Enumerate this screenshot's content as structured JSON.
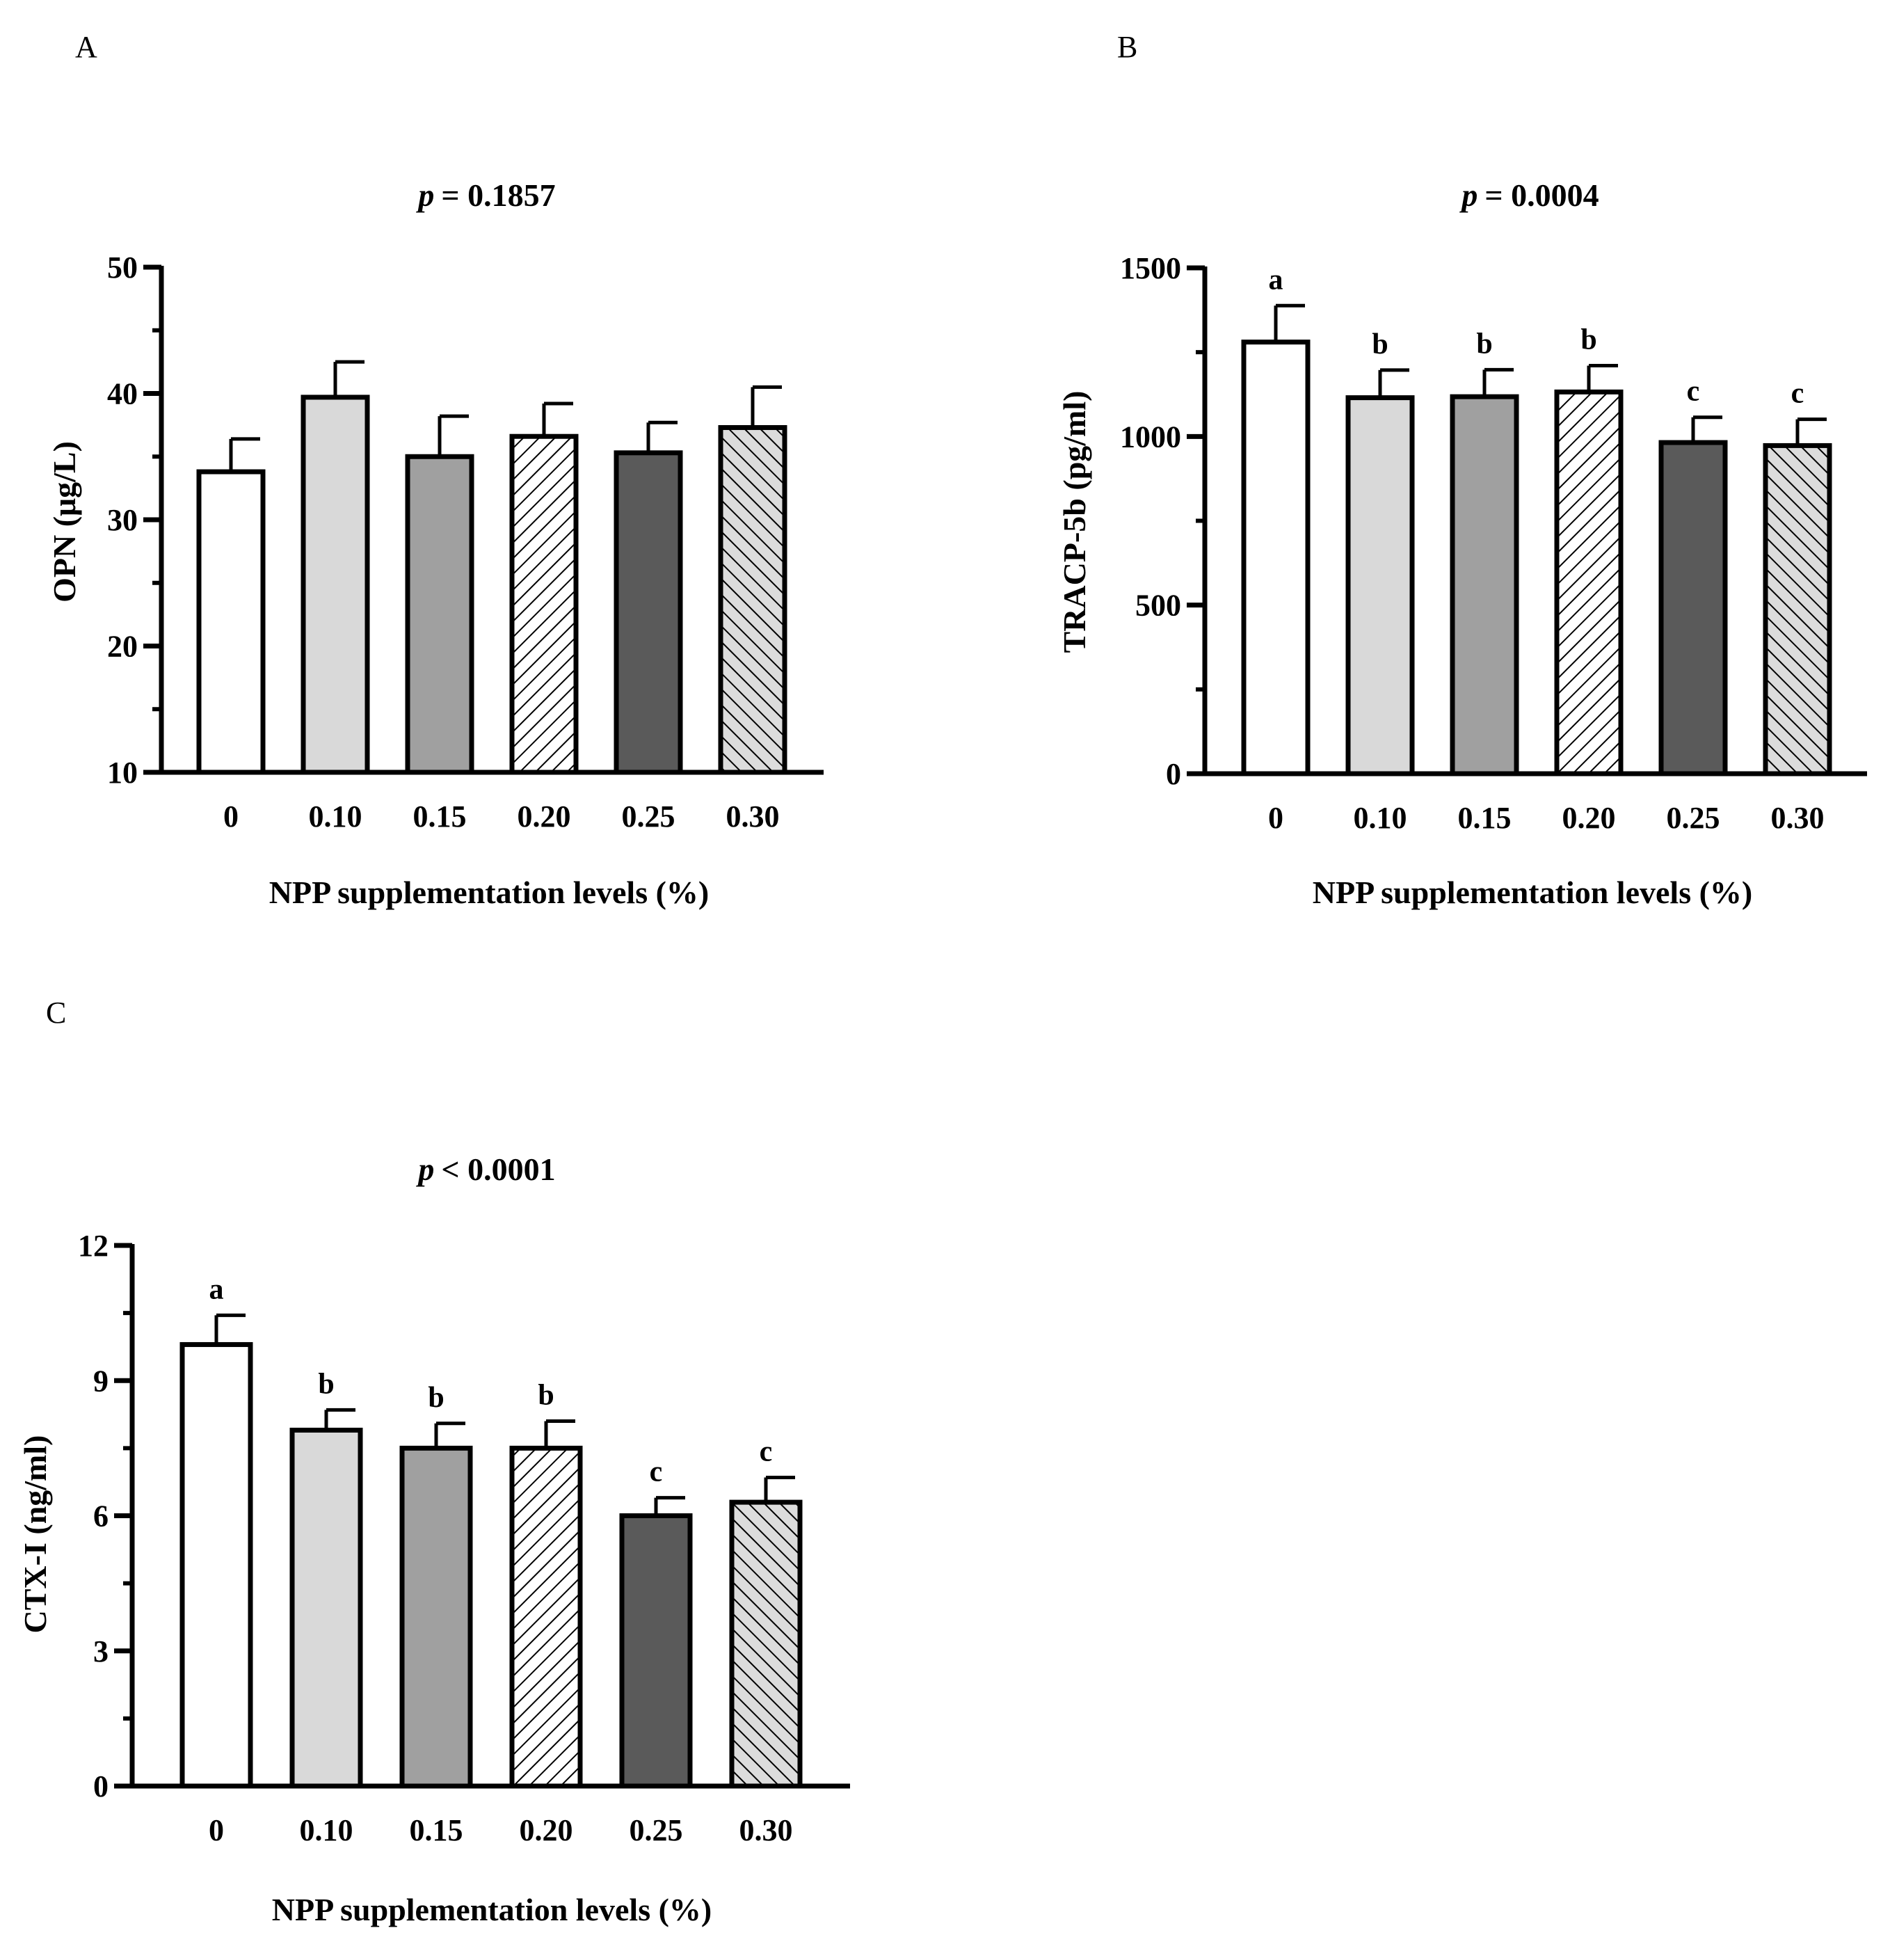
{
  "figure": {
    "colors": {
      "bar_white": "#ffffff",
      "bar_light": "#d9d9d9",
      "bar_mid": "#a0a0a0",
      "bar_dark": "#5a5a5a",
      "hatch_bg_a": "#ffffff",
      "hatch_bg_b": "#dcdcdc",
      "stroke": "#000000"
    }
  },
  "chart_data": [
    {
      "panel": "A",
      "type": "bar",
      "p_label": "p",
      "title": "= 0.1857",
      "ylabel": "OPN (μg/L)",
      "xlabel": "NPP supplementation levels (%)",
      "categories": [
        "0",
        "0.10",
        "0.15",
        "0.20",
        "0.25",
        "0.30"
      ],
      "values": [
        33.8,
        39.7,
        35.0,
        36.6,
        35.3,
        37.3
      ],
      "errors": [
        2.6,
        2.8,
        3.2,
        2.6,
        2.4,
        3.2
      ],
      "significance": [
        "",
        "",
        "",
        "",
        "",
        ""
      ],
      "fills": [
        "white",
        "light",
        "mid",
        "hatch_fwd",
        "dark",
        "hatch_back"
      ],
      "ylim": [
        10,
        50
      ],
      "yticks": [
        10,
        20,
        30,
        40,
        50
      ],
      "minor_step": 5
    },
    {
      "panel": "B",
      "type": "bar",
      "p_label": "p",
      "title": "= 0.0004",
      "ylabel": "TRACP-5b (pg/ml)",
      "xlabel": "NPP supplementation levels (%)",
      "categories": [
        "0",
        "0.10",
        "0.15",
        "0.20",
        "0.25",
        "0.30"
      ],
      "values": [
        1280,
        1115,
        1118,
        1132,
        982,
        973
      ],
      "errors": [
        108,
        82,
        80,
        78,
        75,
        78
      ],
      "significance": [
        "a",
        "b",
        "b",
        "b",
        "c",
        "c"
      ],
      "fills": [
        "white",
        "light",
        "mid",
        "hatch_fwd",
        "dark",
        "hatch_back"
      ],
      "ylim": [
        0,
        1500
      ],
      "yticks": [
        0,
        500,
        1000,
        1500
      ],
      "minor_step": 250
    },
    {
      "panel": "C",
      "type": "bar",
      "p_label": "p",
      "title": "< 0.0001",
      "ylabel": "CTX-I (ng/ml)",
      "xlabel": "NPP supplementation levels (%)",
      "categories": [
        "0",
        "0.10",
        "0.15",
        "0.20",
        "0.25",
        "0.30"
      ],
      "values": [
        9.8,
        7.9,
        7.5,
        7.5,
        6.0,
        6.3
      ],
      "errors": [
        0.65,
        0.45,
        0.55,
        0.6,
        0.4,
        0.55
      ],
      "significance": [
        "a",
        "b",
        "b",
        "b",
        "c",
        "c"
      ],
      "fills": [
        "white",
        "light",
        "mid",
        "hatch_fwd",
        "dark",
        "hatch_back"
      ],
      "ylim": [
        0,
        12
      ],
      "yticks": [
        0,
        3,
        6,
        9,
        12
      ],
      "minor_step": 1.5
    }
  ]
}
